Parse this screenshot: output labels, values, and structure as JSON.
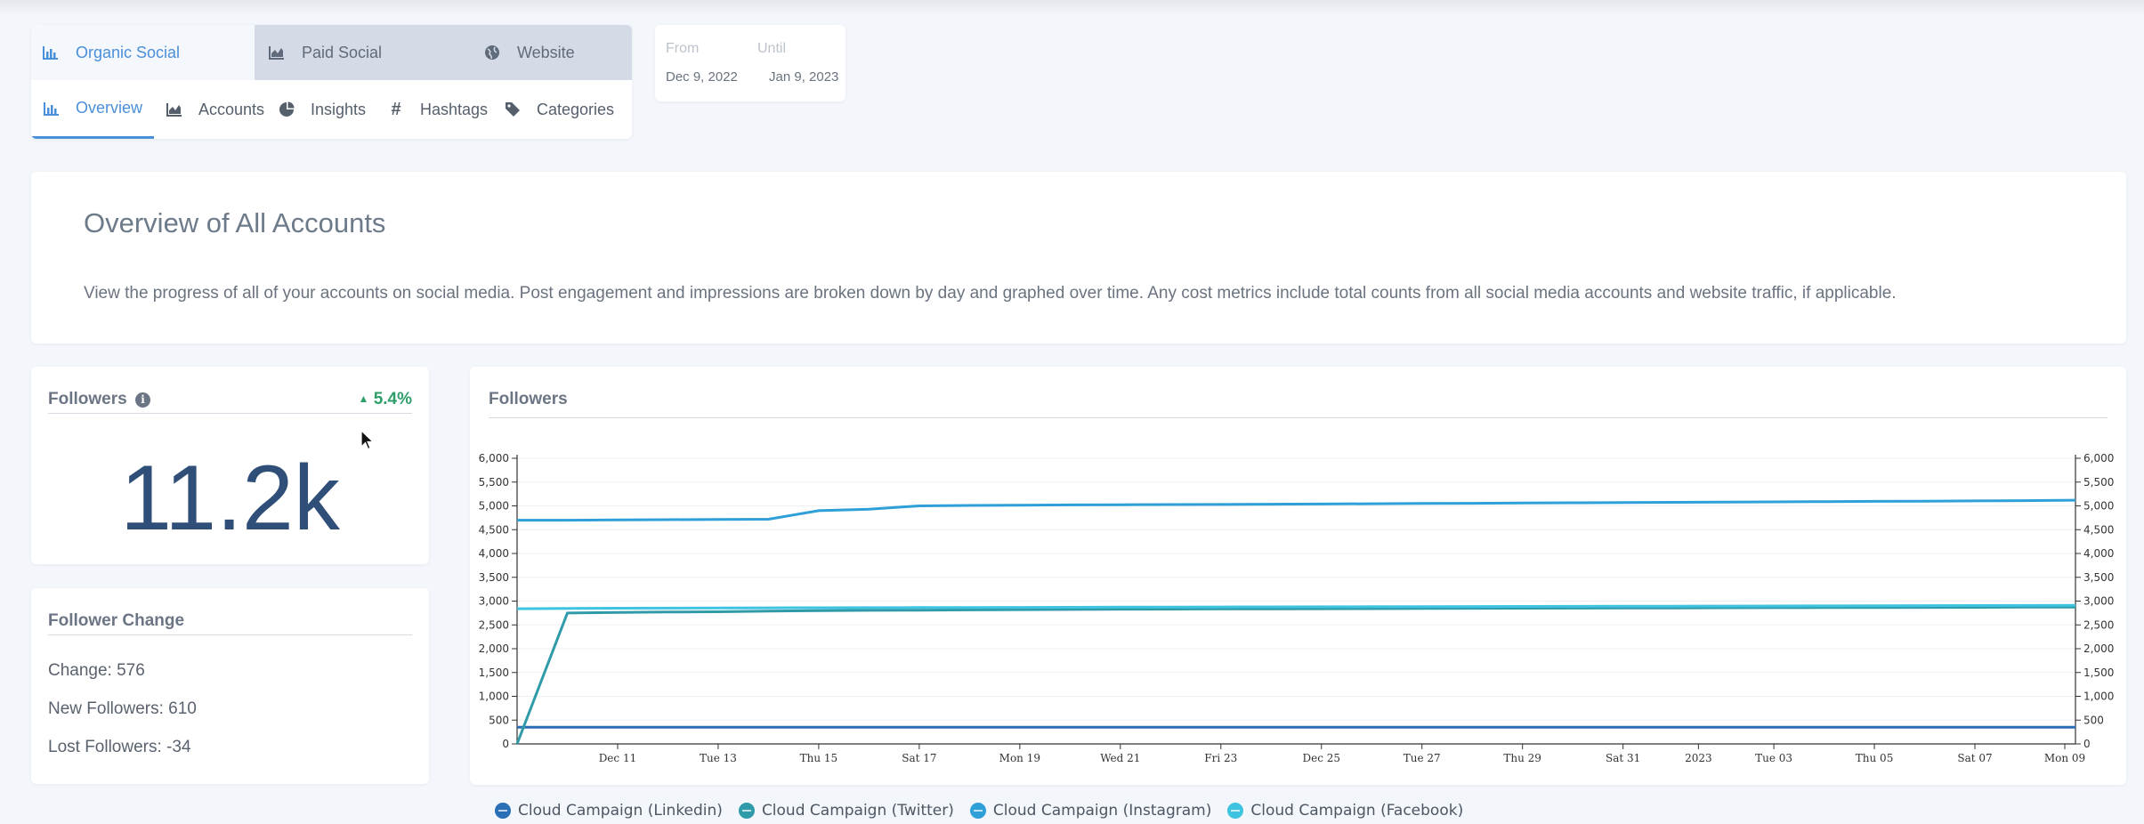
{
  "tabs": [
    {
      "label": "Organic Social",
      "icon": "bar-chart-icon",
      "active": true
    },
    {
      "label": "Paid Social",
      "icon": "area-chart-icon",
      "active": false
    },
    {
      "label": "Website",
      "icon": "globe-icon",
      "active": false
    }
  ],
  "subtabs": [
    {
      "label": "Overview",
      "icon": "bar-chart-icon",
      "active": true
    },
    {
      "label": "Accounts",
      "icon": "area-chart-icon",
      "active": false
    },
    {
      "label": "Insights",
      "icon": "pie-chart-icon",
      "active": false
    },
    {
      "label": "Hashtags",
      "icon": "hashtag-icon",
      "active": false
    },
    {
      "label": "Categories",
      "icon": "tag-icon",
      "active": false
    }
  ],
  "date_range": {
    "from_label": "From",
    "until_label": "Until",
    "from": "Dec 9, 2022",
    "until": "Jan 9, 2023"
  },
  "overview": {
    "title": "Overview of All Accounts",
    "description": "View the progress of all of your accounts on social media. Post engagement and impressions are broken down by day and graphed over time. Any cost metrics include total counts from all social media accounts and website traffic, if applicable."
  },
  "followers": {
    "title": "Followers",
    "change_pct": "5.4%",
    "value": "11.2k"
  },
  "follower_change": {
    "title": "Follower Change",
    "change": "Change: 576",
    "new": "New Followers: 610",
    "lost": "Lost Followers: -34"
  },
  "colors": {
    "accent": "#4a8fd9",
    "positive": "#2e9e6b",
    "big_number": "#2f4f78"
  },
  "chart_data": {
    "type": "line",
    "title": "Followers",
    "x": [
      "Dec 9",
      "Dec 10",
      "Dec 11",
      "Dec 12",
      "Dec 13",
      "Dec 14",
      "Dec 15",
      "Dec 16",
      "Dec 17",
      "Dec 18",
      "Dec 19",
      "Dec 20",
      "Dec 21",
      "Dec 22",
      "Dec 23",
      "Dec 24",
      "Dec 25",
      "Dec 26",
      "Dec 27",
      "Dec 28",
      "Dec 29",
      "Dec 30",
      "Dec 31",
      "Jan 1",
      "Jan 2",
      "Jan 3",
      "Jan 4",
      "Jan 5",
      "Jan 6",
      "Jan 7",
      "Jan 8",
      "Jan 9"
    ],
    "x_ticks": [
      "Dec 11",
      "Tue 13",
      "Thu 15",
      "Sat 17",
      "Mon 19",
      "Wed 21",
      "Fri 23",
      "Dec 25",
      "Tue 27",
      "Thu 29",
      "Sat 31",
      "2023",
      "Tue 03",
      "Thu 05",
      "Sat 07",
      "Mon 09"
    ],
    "ylim": [
      0,
      6000
    ],
    "y_ticks": [
      "0",
      "500",
      "1,000",
      "1,500",
      "2,000",
      "2,500",
      "3,000",
      "3,500",
      "4,000",
      "4,500",
      "5,000",
      "5,500",
      "6,000"
    ],
    "grid": true,
    "legend_position": "bottom-left",
    "series": [
      {
        "name": "Cloud Campaign (Linkedin)",
        "color": "#2a6fb5",
        "values": [
          350,
          350,
          350,
          350,
          350,
          350,
          350,
          350,
          350,
          350,
          350,
          350,
          350,
          350,
          350,
          350,
          350,
          350,
          350,
          350,
          350,
          350,
          350,
          350,
          350,
          350,
          350,
          350,
          350,
          350,
          350,
          350
        ]
      },
      {
        "name": "Cloud Campaign (Twitter)",
        "color": "#2f9aa8",
        "values": [
          0,
          2750,
          2760,
          2770,
          2775,
          2790,
          2800,
          2805,
          2810,
          2815,
          2820,
          2825,
          2830,
          2832,
          2835,
          2838,
          2840,
          2842,
          2845,
          2848,
          2850,
          2853,
          2855,
          2857,
          2860,
          2862,
          2864,
          2866,
          2868,
          2870,
          2872,
          2875
        ]
      },
      {
        "name": "Cloud Campaign (Instagram)",
        "color": "#2f9fd8",
        "values": [
          4700,
          4700,
          4705,
          4710,
          4715,
          4720,
          4900,
          4930,
          5000,
          5010,
          5015,
          5020,
          5025,
          5028,
          5030,
          5035,
          5040,
          5045,
          5050,
          5055,
          5060,
          5065,
          5070,
          5075,
          5080,
          5085,
          5090,
          5095,
          5100,
          5105,
          5110,
          5120
        ]
      },
      {
        "name": "Cloud Campaign (Facebook)",
        "color": "#3ec4e0",
        "values": [
          2840,
          2845,
          2850,
          2852,
          2855,
          2858,
          2860,
          2862,
          2864,
          2866,
          2868,
          2870,
          2872,
          2874,
          2876,
          2878,
          2880,
          2882,
          2884,
          2886,
          2888,
          2890,
          2892,
          2894,
          2896,
          2898,
          2900,
          2902,
          2904,
          2906,
          2908,
          2910
        ]
      }
    ]
  }
}
